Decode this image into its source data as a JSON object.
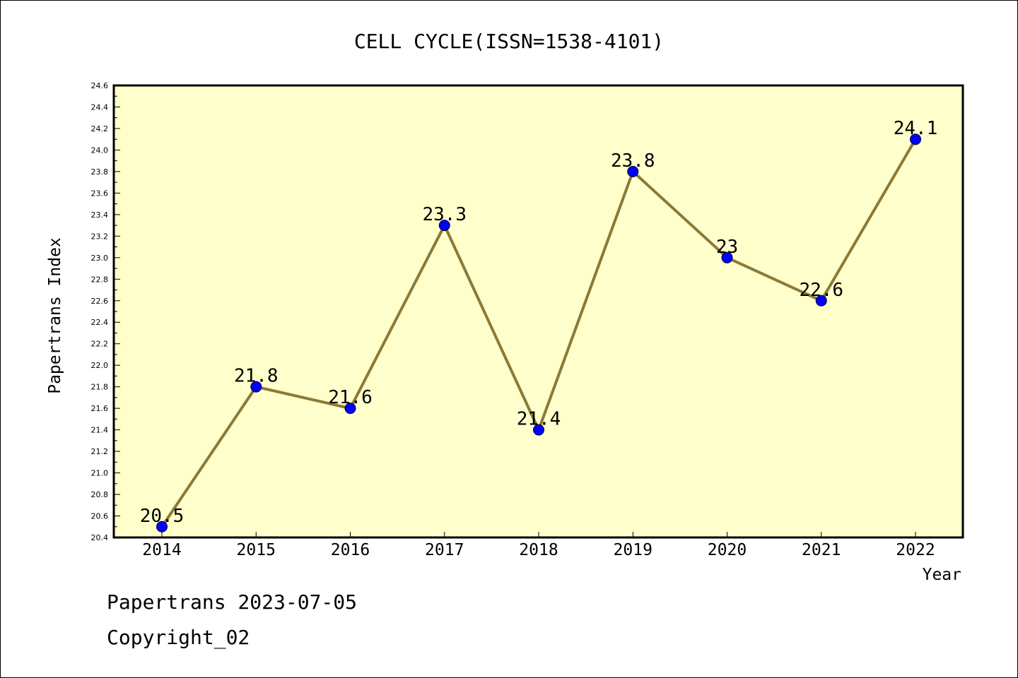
{
  "chart_data": {
    "type": "line",
    "title": "CELL CYCLE(ISSN=1538-4101)",
    "xlabel": "Year",
    "ylabel": "Papertrans Index",
    "categories": [
      "2014",
      "2015",
      "2016",
      "2017",
      "2018",
      "2019",
      "2020",
      "2021",
      "2022"
    ],
    "values": [
      20.5,
      21.8,
      21.6,
      23.3,
      21.4,
      23.8,
      23,
      22.6,
      24.1
    ],
    "data_labels": [
      "20.5",
      "21.8",
      "21.6",
      "23.3",
      "21.4",
      "23.8",
      "23",
      "22.6",
      "24.1"
    ],
    "ylim": [
      20.4,
      24.6
    ],
    "ytick_labels": [
      "20.4",
      "20.6",
      "20.8",
      "21.0",
      "21.2",
      "21.4",
      "21.6",
      "21.8",
      "22.0",
      "22.2",
      "22.4",
      "22.6",
      "22.8",
      "23.0",
      "23.2",
      "23.4",
      "23.6",
      "23.8",
      "24.0",
      "24.2",
      "24.4",
      "24.6"
    ],
    "grid": false,
    "colors": {
      "plot_background": "#ffffcc",
      "line": "#8b7a35",
      "marker": "#0000ff",
      "frame": "#000000"
    }
  },
  "footer": {
    "line1": "Papertrans 2023-07-05",
    "line2": "Copyright_02"
  }
}
